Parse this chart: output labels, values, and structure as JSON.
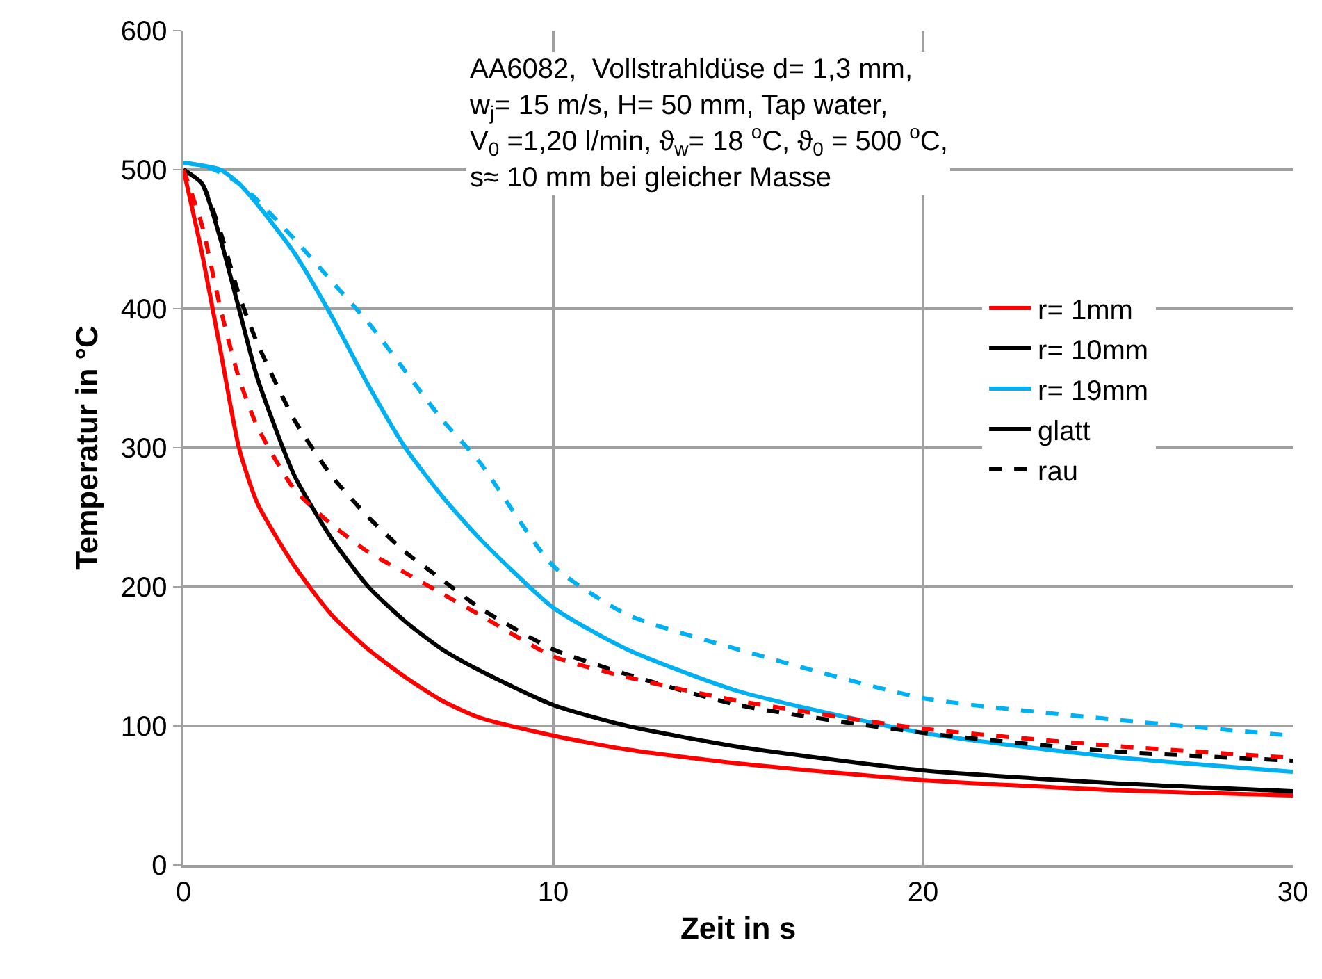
{
  "chart_data": {
    "type": "line",
    "xlabel": "Zeit in s",
    "ylabel": "Temperatur in °C",
    "x": [
      0,
      0.5,
      1,
      1.5,
      2,
      3,
      4,
      5,
      6,
      7,
      8,
      10,
      12,
      15,
      20,
      25,
      30
    ],
    "xlim": [
      0,
      30
    ],
    "xticks": [
      0,
      10,
      20,
      30
    ],
    "ylim": [
      0,
      600
    ],
    "yticks": [
      0,
      100,
      200,
      300,
      400,
      500,
      600
    ],
    "grid": true,
    "legend": "right",
    "marker": "none",
    "annotations": [
      "AA6082,  Vollstrahldüse d= 1,3 mm,\nw$_{j}$= 15 m/s, H= 50 mm, Tap water,\nV$_{0}$ =1,20 l/min, ϑ$_{w}$= 18 $^{o}$C, ϑ$_{0}$ = 500 $^{o}$C,\ns≈ 10 mm bei gleicher Masse"
    ],
    "series": [
      {
        "name": "r= 1mm",
        "color": "#ff0000",
        "line_style": "solid",
        "values": [
          500,
          440,
          370,
          300,
          260,
          215,
          180,
          155,
          135,
          118,
          106,
          93,
          83,
          73,
          61,
          54,
          50
        ]
      },
      {
        "name": "r= 10mm",
        "color": "#000000",
        "line_style": "solid",
        "values": [
          500,
          490,
          450,
          400,
          350,
          280,
          235,
          200,
          175,
          155,
          140,
          115,
          100,
          85,
          68,
          59,
          53
        ]
      },
      {
        "name": "r= 19mm",
        "color": "#00b0f0",
        "line_style": "solid",
        "values": [
          505,
          503,
          500,
          490,
          475,
          440,
          395,
          345,
          300,
          265,
          235,
          185,
          155,
          125,
          95,
          78,
          67
        ]
      },
      {
        "name": "glatt",
        "color": "#000000",
        "line_style": "solid",
        "values": [
          null,
          null,
          null,
          null,
          null,
          null,
          null,
          null,
          null,
          null,
          null,
          null,
          null,
          null,
          null,
          null,
          null
        ]
      },
      {
        "name": "rau",
        "color": "#000000",
        "line_style": "dashed",
        "values": [
          500,
          490,
          455,
          410,
          375,
          320,
          280,
          250,
          225,
          205,
          185,
          155,
          137,
          115,
          95,
          82,
          75
        ]
      },
      {
        "color": "#ff0000",
        "line_style": "dashed",
        "values": [
          500,
          460,
          400,
          350,
          315,
          270,
          245,
          225,
          210,
          195,
          180,
          150,
          135,
          118,
          98,
          86,
          77
        ]
      },
      {
        "color": "#00b0f0",
        "line_style": "dashed",
        "values": [
          505,
          503,
          498,
          490,
          478,
          450,
          420,
          390,
          355,
          320,
          290,
          215,
          180,
          155,
          120,
          105,
          93
        ]
      }
    ]
  }
}
